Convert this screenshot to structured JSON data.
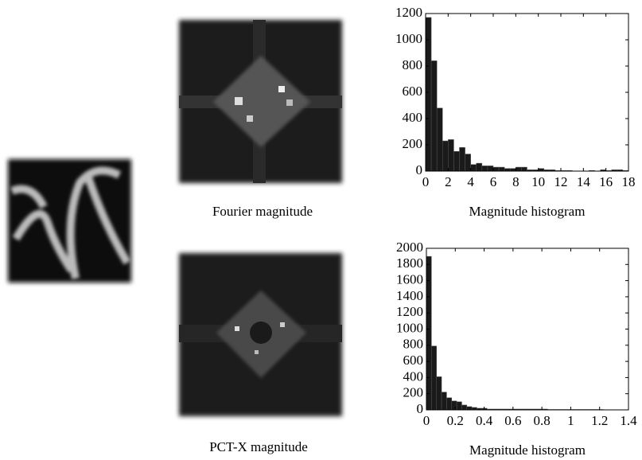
{
  "images": [
    {
      "caption": "Fourier magnitude"
    },
    {
      "caption": "PCT-X magnitude"
    }
  ],
  "chart_data": [
    {
      "type": "histogram",
      "xlabel": "Magnitude histogram",
      "color": "#1a1a1a",
      "bins": [
        0,
        0.5,
        1,
        1.5,
        2,
        2.5,
        3,
        3.5,
        4,
        4.5,
        5,
        5.5,
        6,
        6.5,
        7,
        7.5,
        8,
        8.5,
        9,
        9.5,
        10,
        10.5,
        11,
        11.5,
        12,
        12.5,
        13,
        13.5,
        14,
        14.5,
        15,
        15.5,
        16,
        16.5,
        17,
        17.5,
        18
      ],
      "values": [
        1170,
        840,
        480,
        230,
        240,
        150,
        180,
        130,
        50,
        60,
        40,
        40,
        30,
        30,
        20,
        20,
        30,
        30,
        10,
        10,
        20,
        10,
        10,
        5,
        5,
        5,
        0,
        0,
        0,
        5,
        0,
        10,
        5,
        10,
        10,
        5
      ],
      "xlim": [
        0,
        18
      ],
      "xticks": [
        0,
        2,
        4,
        6,
        8,
        10,
        12,
        14,
        16,
        18
      ],
      "ylim": [
        0,
        1200
      ],
      "yticks": [
        0,
        200,
        400,
        600,
        800,
        1000,
        1200
      ]
    },
    {
      "type": "histogram",
      "xlabel": "Magnitude histogram",
      "color": "#1a1a1a",
      "bins": [
        0,
        0.035,
        0.07,
        0.105,
        0.14,
        0.175,
        0.21,
        0.245,
        0.28,
        0.315,
        0.35,
        0.385,
        0.42,
        0.455,
        0.49,
        0.525,
        0.56,
        0.595,
        0.63,
        0.665,
        0.7,
        0.735,
        0.77,
        0.805,
        0.84,
        0.875,
        0.91,
        0.945,
        0.98,
        1.015,
        1.05,
        1.085,
        1.12,
        1.155,
        1.19,
        1.225,
        1.26,
        1.295,
        1.33,
        1.365,
        1.4
      ],
      "values": [
        1900,
        790,
        410,
        220,
        150,
        110,
        100,
        60,
        40,
        30,
        20,
        20,
        10,
        10,
        10,
        10,
        10,
        10,
        10,
        10,
        10,
        10,
        10,
        10,
        5,
        5,
        5,
        5,
        5,
        5,
        5,
        5,
        5,
        5,
        5,
        0,
        0,
        0,
        0,
        0
      ],
      "xlim": [
        0,
        1.4
      ],
      "xticks": [
        0,
        0.2,
        0.4,
        0.6,
        0.8,
        1,
        1.2,
        1.4
      ],
      "ylim": [
        0,
        2000
      ],
      "yticks": [
        0,
        200,
        400,
        600,
        800,
        1000,
        1200,
        1400,
        1600,
        1800,
        2000
      ]
    }
  ]
}
